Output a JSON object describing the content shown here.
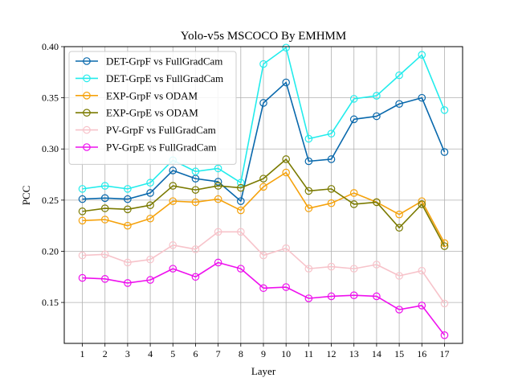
{
  "chart_data": {
    "type": "line",
    "title": "Yolo-v5s MSCOCO By EMHMM",
    "xlabel": "Layer",
    "ylabel": "PCC",
    "x": [
      1,
      2,
      3,
      4,
      5,
      6,
      7,
      8,
      9,
      10,
      11,
      12,
      13,
      14,
      15,
      16,
      17
    ],
    "xlim": [
      0.2,
      17.8
    ],
    "ylim": [
      0.11,
      0.4
    ],
    "yticks": [
      "0.15",
      "0.20",
      "0.25",
      "0.30",
      "0.35",
      "0.40"
    ],
    "grid": true,
    "legend_position": "upper-left",
    "series": [
      {
        "name": "DET-GrpF vs FullGradCam",
        "color": "#0868ac",
        "values": [
          0.251,
          0.252,
          0.251,
          0.257,
          0.279,
          0.271,
          0.268,
          0.249,
          0.345,
          0.365,
          0.288,
          0.29,
          0.329,
          0.332,
          0.344,
          0.35,
          0.297
        ]
      },
      {
        "name": "DET-GrpE vs FullGradCam",
        "color": "#22ecec",
        "values": [
          0.261,
          0.264,
          0.261,
          0.267,
          0.289,
          0.278,
          0.281,
          0.267,
          0.383,
          0.399,
          0.31,
          0.315,
          0.349,
          0.352,
          0.372,
          0.392,
          0.338
        ]
      },
      {
        "name": "EXP-GrpF vs ODAM",
        "color": "#f5a20c",
        "values": [
          0.23,
          0.231,
          0.225,
          0.232,
          0.249,
          0.248,
          0.251,
          0.24,
          0.263,
          0.277,
          0.242,
          0.247,
          0.257,
          0.248,
          0.236,
          0.249,
          0.208
        ]
      },
      {
        "name": "EXP-GrpE vs ODAM",
        "color": "#7a7a00",
        "values": [
          0.239,
          0.242,
          0.241,
          0.245,
          0.264,
          0.26,
          0.264,
          0.262,
          0.271,
          0.29,
          0.259,
          0.261,
          0.246,
          0.248,
          0.223,
          0.246,
          0.205
        ]
      },
      {
        "name": "PV-GrpF vs FullGradCam",
        "color": "#f7c3ca",
        "values": [
          0.196,
          0.197,
          0.189,
          0.192,
          0.206,
          0.202,
          0.219,
          0.219,
          0.196,
          0.203,
          0.183,
          0.185,
          0.183,
          0.187,
          0.176,
          0.181,
          0.149
        ]
      },
      {
        "name": "PV-GrpE vs FullGradCam",
        "color": "#ee10ee",
        "values": [
          0.174,
          0.173,
          0.169,
          0.172,
          0.183,
          0.175,
          0.189,
          0.183,
          0.164,
          0.165,
          0.154,
          0.156,
          0.157,
          0.156,
          0.143,
          0.147,
          0.118
        ]
      }
    ]
  }
}
